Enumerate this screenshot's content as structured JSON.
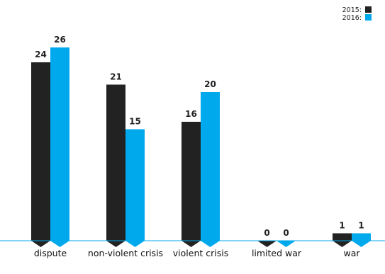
{
  "chart_data": {
    "type": "bar",
    "categories": [
      "dispute",
      "non-violent crisis",
      "violent crisis",
      "limited war",
      "war"
    ],
    "series": [
      {
        "name": "2015:",
        "color": "#222222",
        "values": [
          24,
          21,
          16,
          0,
          1
        ]
      },
      {
        "name": "2016:",
        "color": "#00a8ec",
        "values": [
          26,
          15,
          20,
          0,
          1
        ]
      }
    ],
    "title": "",
    "xlabel": "",
    "ylabel": "",
    "ylim": [
      0,
      26
    ],
    "grid": false,
    "legend_position": "top-right",
    "baseline_color": "#00a8ec"
  }
}
